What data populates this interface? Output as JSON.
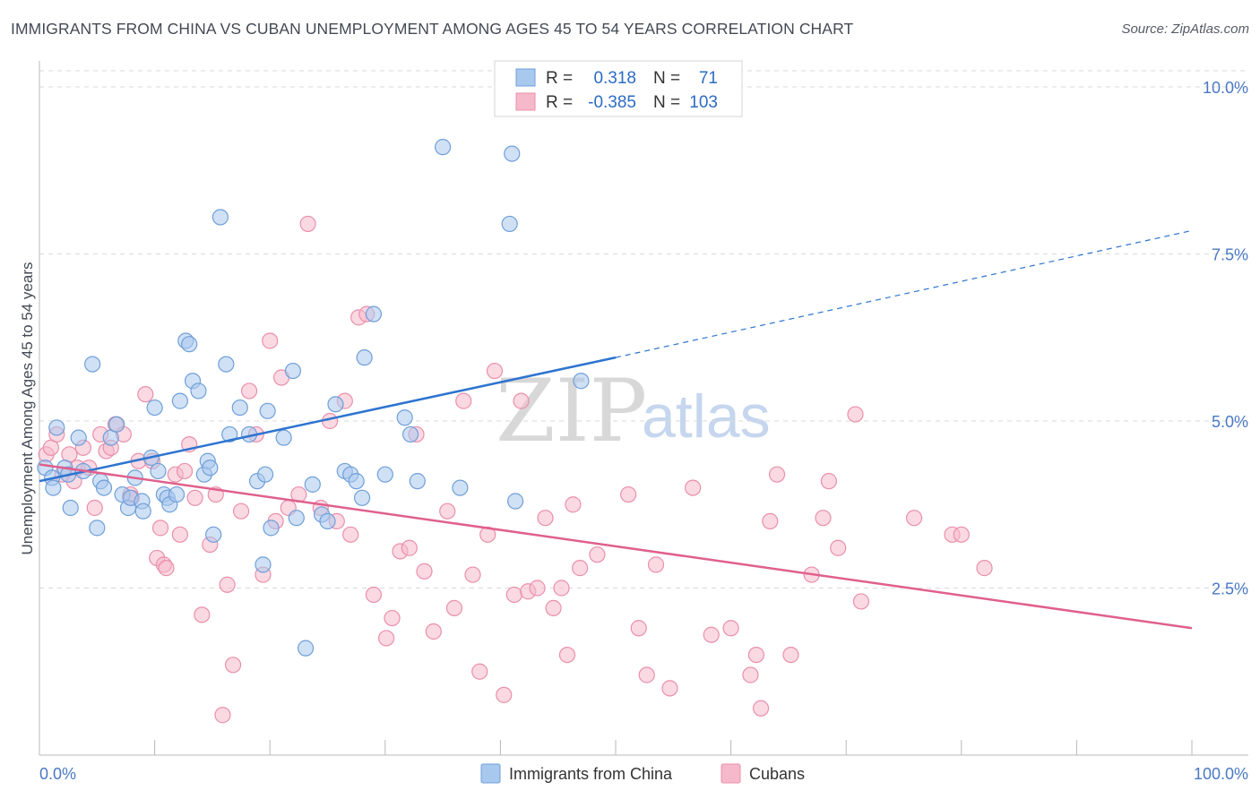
{
  "title": "IMMIGRANTS FROM CHINA VS CUBAN UNEMPLOYMENT AMONG AGES 45 TO 54 YEARS CORRELATION CHART",
  "source": "Source: ZipAtlas.com",
  "watermark": {
    "zip": "ZIP",
    "atlas": "atlas"
  },
  "legend": {
    "rows": [
      {
        "r_label": "R =",
        "r_value": "0.318",
        "n_label": "N =",
        "n_value": "71"
      },
      {
        "r_label": "R =",
        "r_value": "-0.385",
        "n_label": "N =",
        "n_value": "103"
      }
    ]
  },
  "colors": {
    "blue_fill": "#a9c8ee",
    "blue_stroke": "#6f9fd8",
    "blue_line": "#2d74d0",
    "pink_fill": "#f6b9cc",
    "pink_stroke": "#ea8fab",
    "pink_line": "#e0608c",
    "legend_value": "#2d6bc4",
    "grid": "#d9d9d9",
    "axis": "#b8b8b8"
  },
  "chart_data": {
    "type": "scatter",
    "title": "IMMIGRANTS FROM CHINA VS CUBAN UNEMPLOYMENT AMONG AGES 45 TO 54 YEARS CORRELATION CHART",
    "xlabel": "",
    "ylabel": "Unemployment Among Ages 45 to 54 years",
    "xlim": [
      0,
      100
    ],
    "ylim": [
      0,
      10
    ],
    "x_tick_labels": [
      "0.0%",
      "100.0%"
    ],
    "y_ticks": [
      2.5,
      5.0,
      7.5,
      10.0
    ],
    "y_tick_labels": [
      "2.5%",
      "5.0%",
      "7.5%",
      "10.0%"
    ],
    "grid": "horizontal dashed",
    "series": [
      {
        "name": "Immigrants from China",
        "color": "#a9c8ee",
        "trend": {
          "x0": 0,
          "y0": 4.1,
          "x1": 50,
          "y1": 5.95,
          "dash_from_x": 50,
          "x_end": 100,
          "y_end": 7.85
        },
        "points": [
          [
            0.5,
            4.3
          ],
          [
            1.1,
            4.15
          ],
          [
            1.2,
            4.0
          ],
          [
            1.5,
            4.9
          ],
          [
            2.2,
            4.3
          ],
          [
            2.5,
            4.2
          ],
          [
            2.7,
            3.7
          ],
          [
            3.4,
            4.75
          ],
          [
            3.8,
            4.25
          ],
          [
            4.6,
            5.85
          ],
          [
            5.0,
            3.4
          ],
          [
            5.3,
            4.1
          ],
          [
            5.6,
            4.0
          ],
          [
            6.2,
            4.75
          ],
          [
            6.7,
            4.95
          ],
          [
            7.2,
            3.9
          ],
          [
            7.7,
            3.7
          ],
          [
            7.9,
            3.85
          ],
          [
            8.3,
            4.15
          ],
          [
            8.9,
            3.8
          ],
          [
            9.0,
            3.65
          ],
          [
            9.7,
            4.45
          ],
          [
            10.0,
            5.2
          ],
          [
            10.3,
            4.25
          ],
          [
            10.8,
            3.9
          ],
          [
            11.1,
            3.85
          ],
          [
            11.3,
            3.75
          ],
          [
            11.9,
            3.9
          ],
          [
            12.2,
            5.3
          ],
          [
            12.7,
            6.2
          ],
          [
            13.0,
            6.15
          ],
          [
            13.3,
            5.6
          ],
          [
            13.8,
            5.45
          ],
          [
            14.3,
            4.2
          ],
          [
            14.6,
            4.4
          ],
          [
            15.1,
            3.3
          ],
          [
            15.7,
            8.05
          ],
          [
            16.2,
            5.85
          ],
          [
            16.5,
            4.8
          ],
          [
            17.4,
            5.2
          ],
          [
            18.2,
            4.8
          ],
          [
            18.9,
            4.1
          ],
          [
            19.4,
            2.85
          ],
          [
            19.6,
            4.2
          ],
          [
            19.8,
            5.15
          ],
          [
            20.1,
            3.4
          ],
          [
            21.2,
            4.75
          ],
          [
            22.0,
            5.75
          ],
          [
            22.3,
            3.55
          ],
          [
            23.1,
            1.6
          ],
          [
            23.7,
            4.05
          ],
          [
            24.5,
            3.6
          ],
          [
            25.7,
            5.25
          ],
          [
            26.5,
            4.25
          ],
          [
            27.0,
            4.2
          ],
          [
            27.5,
            4.1
          ],
          [
            28.0,
            3.85
          ],
          [
            28.2,
            5.95
          ],
          [
            29.0,
            6.6
          ],
          [
            30.0,
            4.2
          ],
          [
            31.7,
            5.05
          ],
          [
            32.2,
            4.8
          ],
          [
            32.8,
            4.1
          ],
          [
            35.0,
            9.1
          ],
          [
            36.5,
            4.0
          ],
          [
            40.8,
            7.95
          ],
          [
            41.0,
            9.0
          ],
          [
            41.3,
            3.8
          ],
          [
            47.0,
            5.6
          ],
          [
            25.0,
            3.5
          ],
          [
            14.8,
            4.3
          ]
        ]
      },
      {
        "name": "Cubans",
        "color": "#f6b9cc",
        "trend": {
          "x0": 0,
          "y0": 4.35,
          "x1": 100,
          "y1": 1.9
        },
        "points": [
          [
            0.6,
            4.5
          ],
          [
            1.0,
            4.6
          ],
          [
            1.5,
            4.8
          ],
          [
            2.0,
            4.2
          ],
          [
            2.6,
            4.5
          ],
          [
            3.0,
            4.1
          ],
          [
            3.3,
            4.3
          ],
          [
            3.8,
            4.6
          ],
          [
            4.3,
            4.3
          ],
          [
            4.8,
            3.7
          ],
          [
            5.3,
            4.8
          ],
          [
            5.8,
            4.55
          ],
          [
            6.2,
            4.6
          ],
          [
            6.6,
            4.95
          ],
          [
            7.3,
            4.8
          ],
          [
            7.9,
            3.9
          ],
          [
            8.6,
            4.4
          ],
          [
            9.2,
            5.4
          ],
          [
            9.8,
            4.4
          ],
          [
            10.2,
            2.95
          ],
          [
            10.5,
            3.4
          ],
          [
            10.8,
            2.85
          ],
          [
            11.0,
            2.8
          ],
          [
            11.8,
            4.2
          ],
          [
            12.2,
            3.3
          ],
          [
            12.6,
            4.25
          ],
          [
            13.0,
            4.65
          ],
          [
            13.5,
            3.85
          ],
          [
            14.1,
            2.1
          ],
          [
            14.8,
            3.15
          ],
          [
            15.3,
            3.9
          ],
          [
            15.9,
            0.6
          ],
          [
            16.3,
            2.55
          ],
          [
            16.8,
            1.35
          ],
          [
            17.5,
            3.65
          ],
          [
            18.2,
            5.45
          ],
          [
            18.8,
            4.8
          ],
          [
            19.4,
            2.7
          ],
          [
            20.0,
            6.2
          ],
          [
            20.5,
            3.5
          ],
          [
            21.0,
            5.65
          ],
          [
            21.6,
            3.7
          ],
          [
            22.5,
            3.9
          ],
          [
            23.3,
            7.95
          ],
          [
            24.4,
            3.7
          ],
          [
            25.2,
            5.0
          ],
          [
            25.8,
            3.5
          ],
          [
            26.5,
            5.3
          ],
          [
            27.0,
            3.3
          ],
          [
            27.7,
            6.55
          ],
          [
            28.4,
            6.6
          ],
          [
            29.0,
            2.4
          ],
          [
            30.1,
            1.75
          ],
          [
            30.6,
            2.05
          ],
          [
            31.3,
            3.05
          ],
          [
            32.1,
            3.1
          ],
          [
            32.7,
            4.8
          ],
          [
            33.4,
            2.75
          ],
          [
            34.2,
            1.85
          ],
          [
            35.4,
            3.65
          ],
          [
            36.0,
            2.2
          ],
          [
            36.8,
            5.3
          ],
          [
            37.6,
            2.7
          ],
          [
            38.2,
            1.25
          ],
          [
            38.9,
            3.3
          ],
          [
            39.5,
            5.75
          ],
          [
            40.3,
            0.9
          ],
          [
            41.2,
            2.4
          ],
          [
            41.8,
            5.3
          ],
          [
            42.4,
            2.45
          ],
          [
            43.2,
            2.5
          ],
          [
            43.9,
            3.55
          ],
          [
            44.6,
            2.2
          ],
          [
            45.3,
            2.5
          ],
          [
            45.8,
            1.5
          ],
          [
            46.3,
            3.75
          ],
          [
            46.9,
            2.8
          ],
          [
            48.4,
            3.0
          ],
          [
            51.1,
            3.9
          ],
          [
            52.0,
            1.9
          ],
          [
            52.7,
            1.2
          ],
          [
            53.5,
            2.85
          ],
          [
            54.7,
            1.0
          ],
          [
            56.7,
            4.0
          ],
          [
            58.3,
            1.8
          ],
          [
            60.0,
            1.9
          ],
          [
            61.7,
            1.2
          ],
          [
            62.2,
            1.5
          ],
          [
            62.6,
            0.7
          ],
          [
            63.4,
            3.5
          ],
          [
            64.0,
            4.2
          ],
          [
            65.2,
            1.5
          ],
          [
            67.0,
            2.7
          ],
          [
            68.0,
            3.55
          ],
          [
            68.5,
            4.1
          ],
          [
            69.3,
            3.1
          ],
          [
            70.8,
            5.1
          ],
          [
            71.3,
            2.3
          ],
          [
            75.9,
            3.55
          ],
          [
            79.2,
            3.3
          ],
          [
            80.0,
            3.3
          ],
          [
            82.0,
            2.8
          ],
          [
            8.0,
            3.85
          ]
        ]
      }
    ]
  },
  "bottom_legend": [
    "Immigrants from China",
    "Cubans"
  ]
}
